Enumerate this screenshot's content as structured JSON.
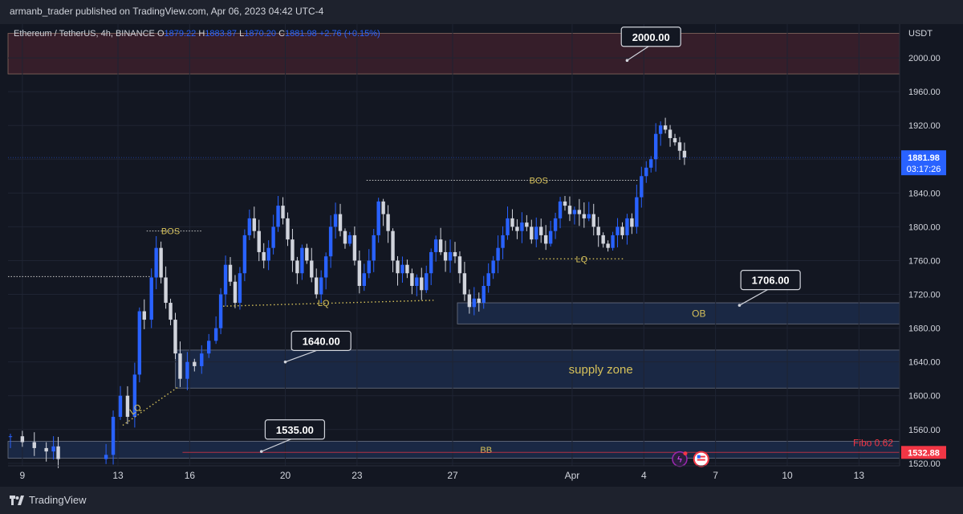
{
  "header": {
    "publisher_line": "armanb_trader published on TradingView.com, Apr 06, 2023 04:42 UTC-4"
  },
  "legend": {
    "symbol": "Ethereum / TetherUS, 4h, BINANCE",
    "o_label": "O",
    "o_value": "1879.22",
    "h_label": "H",
    "h_value": "1883.87",
    "l_label": "L",
    "l_value": "1870.20",
    "c_label": "C",
    "c_value": "1881.98",
    "change": "+2.76 (+0.15%)"
  },
  "footer": {
    "brand": "TradingView"
  },
  "colors": {
    "background": "#131722",
    "up_candle": "#2962ff",
    "down_candle": "#d1d4dc",
    "zone_fill": "#1c2b4a",
    "resistance_fill": "#3b1f2b",
    "annotation": "#d6c15a",
    "fibo": "#f23645"
  },
  "chart_data": {
    "type": "candlestick",
    "y_unit": "USDT",
    "ylim": [
      1517,
      2040
    ],
    "y_ticks": [
      1520,
      1560,
      1600,
      1640,
      1680,
      1720,
      1760,
      1800,
      1840,
      1880,
      1920,
      1960,
      2000
    ],
    "x_ticks": [
      {
        "label": "9",
        "day": 9
      },
      {
        "label": "13",
        "day": 13
      },
      {
        "label": "16",
        "day": 16
      },
      {
        "label": "20",
        "day": 20
      },
      {
        "label": "23",
        "day": 23
      },
      {
        "label": "27",
        "day": 27
      },
      {
        "label": "Apr",
        "day": 32
      },
      {
        "label": "4",
        "day": 35
      },
      {
        "label": "7",
        "day": 38
      },
      {
        "label": "10",
        "day": 41
      },
      {
        "label": "13",
        "day": 44
      }
    ],
    "x_range_days": [
      8.4,
      45.7
    ],
    "last_price": "1881.98",
    "last_price_value": 1881.98,
    "countdown": "03:17:26",
    "fibo_price": "1532.88",
    "fibo_price_value": 1532.88,
    "fibo_label": "Fibo 0.62",
    "close_path": [
      [
        8.5,
        1552
      ],
      [
        9.0,
        1545
      ],
      [
        9.5,
        1538
      ],
      [
        10.0,
        1534
      ],
      [
        10.3,
        1540
      ],
      [
        10.5,
        1525
      ],
      [
        12.5,
        1530
      ],
      [
        12.8,
        1575
      ],
      [
        13.1,
        1600
      ],
      [
        13.4,
        1575
      ],
      [
        13.7,
        1625
      ],
      [
        13.9,
        1700
      ],
      [
        14.1,
        1690
      ],
      [
        14.4,
        1740
      ],
      [
        14.6,
        1775
      ],
      [
        14.8,
        1740
      ],
      [
        15.0,
        1710
      ],
      [
        15.2,
        1690
      ],
      [
        15.4,
        1650
      ],
      [
        15.6,
        1620
      ],
      [
        15.9,
        1640
      ],
      [
        16.2,
        1635
      ],
      [
        16.5,
        1650
      ],
      [
        16.8,
        1665
      ],
      [
        17.1,
        1680
      ],
      [
        17.3,
        1720
      ],
      [
        17.5,
        1755
      ],
      [
        17.7,
        1735
      ],
      [
        17.9,
        1710
      ],
      [
        18.1,
        1745
      ],
      [
        18.3,
        1790
      ],
      [
        18.5,
        1810
      ],
      [
        18.7,
        1795
      ],
      [
        18.9,
        1770
      ],
      [
        19.1,
        1760
      ],
      [
        19.3,
        1775
      ],
      [
        19.5,
        1800
      ],
      [
        19.7,
        1825
      ],
      [
        19.9,
        1810
      ],
      [
        20.1,
        1785
      ],
      [
        20.3,
        1760
      ],
      [
        20.5,
        1745
      ],
      [
        20.7,
        1775
      ],
      [
        20.9,
        1760
      ],
      [
        21.1,
        1740
      ],
      [
        21.3,
        1720
      ],
      [
        21.5,
        1740
      ],
      [
        21.7,
        1765
      ],
      [
        21.9,
        1800
      ],
      [
        22.1,
        1815
      ],
      [
        22.3,
        1795
      ],
      [
        22.5,
        1780
      ],
      [
        22.7,
        1790
      ],
      [
        22.9,
        1760
      ],
      [
        23.1,
        1730
      ],
      [
        23.3,
        1745
      ],
      [
        23.5,
        1760
      ],
      [
        23.7,
        1790
      ],
      [
        23.9,
        1830
      ],
      [
        24.1,
        1815
      ],
      [
        24.3,
        1795
      ],
      [
        24.5,
        1760
      ],
      [
        24.7,
        1745
      ],
      [
        24.9,
        1755
      ],
      [
        25.1,
        1745
      ],
      [
        25.3,
        1730
      ],
      [
        25.5,
        1740
      ],
      [
        25.7,
        1725
      ],
      [
        25.9,
        1745
      ],
      [
        26.1,
        1770
      ],
      [
        26.3,
        1785
      ],
      [
        26.5,
        1770
      ],
      [
        26.7,
        1760
      ],
      [
        26.9,
        1770
      ],
      [
        27.1,
        1765
      ],
      [
        27.3,
        1745
      ],
      [
        27.5,
        1720
      ],
      [
        27.7,
        1705
      ],
      [
        27.9,
        1715
      ],
      [
        28.1,
        1710
      ],
      [
        28.3,
        1730
      ],
      [
        28.5,
        1745
      ],
      [
        28.7,
        1760
      ],
      [
        28.9,
        1775
      ],
      [
        29.1,
        1790
      ],
      [
        29.3,
        1810
      ],
      [
        29.5,
        1800
      ],
      [
        29.7,
        1795
      ],
      [
        29.9,
        1805
      ],
      [
        30.1,
        1800
      ],
      [
        30.3,
        1785
      ],
      [
        30.5,
        1800
      ],
      [
        30.7,
        1790
      ],
      [
        30.9,
        1780
      ],
      [
        31.1,
        1795
      ],
      [
        31.3,
        1810
      ],
      [
        31.5,
        1830
      ],
      [
        31.7,
        1825
      ],
      [
        31.9,
        1815
      ],
      [
        32.1,
        1820
      ],
      [
        32.3,
        1815
      ],
      [
        32.5,
        1810
      ],
      [
        32.7,
        1815
      ],
      [
        32.9,
        1800
      ],
      [
        33.1,
        1790
      ],
      [
        33.3,
        1780
      ],
      [
        33.5,
        1775
      ],
      [
        33.7,
        1790
      ],
      [
        33.9,
        1800
      ],
      [
        34.1,
        1790
      ],
      [
        34.3,
        1810
      ],
      [
        34.5,
        1800
      ],
      [
        34.7,
        1835
      ],
      [
        34.9,
        1860
      ],
      [
        35.1,
        1870
      ],
      [
        35.3,
        1880
      ],
      [
        35.5,
        1910
      ],
      [
        35.7,
        1920
      ],
      [
        35.9,
        1915
      ],
      [
        36.1,
        1905
      ],
      [
        36.3,
        1900
      ],
      [
        36.5,
        1890
      ],
      [
        36.7,
        1882
      ]
    ],
    "zones": [
      {
        "name": "resistance",
        "top": 2029,
        "bottom": 1981,
        "from_day": 8.4,
        "to_day": 45.7
      },
      {
        "name": "supply zone",
        "top": 1654,
        "bottom": 1609,
        "from_day": 15.4,
        "to_day": 45.7
      },
      {
        "name": "OB",
        "top": 1710,
        "bottom": 1685,
        "from_day": 27.2,
        "to_day": 45.7
      },
      {
        "name": "BB",
        "top": 1546,
        "bottom": 1526,
        "from_day": 8.4,
        "to_day": 45.7
      }
    ],
    "annotations": {
      "ob_label": "OB",
      "supply_label": "supply zone",
      "bb_label": "BB",
      "bos_1": "BOS",
      "bos_2": "BOS",
      "lq_1": "LQ",
      "lq_2": "LQ",
      "lq_3": "LQ",
      "callout_2000": "2000.00",
      "callout_1706": "1706.00",
      "callout_1640": "1640.00",
      "callout_1535": "1535.00"
    }
  }
}
